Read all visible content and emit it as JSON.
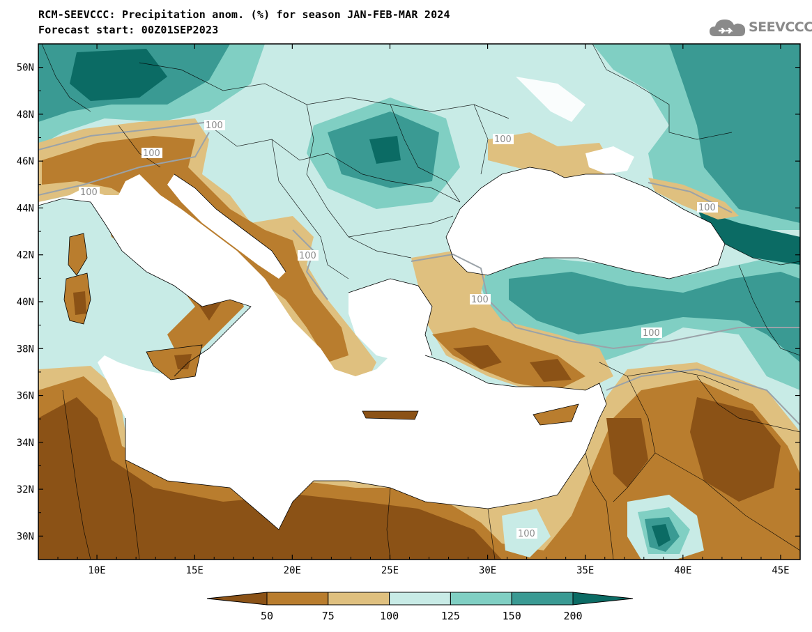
{
  "title": {
    "line1": "RCM-SEEVCCC: Precipitation anom. (%) for season JAN-FEB-MAR 2024",
    "line2": "Forecast start: 00Z01SEP2023"
  },
  "logo": {
    "text": "SEEVCCC",
    "icon": "cloud-icon",
    "color": "#8a8a8a"
  },
  "map": {
    "lon_range": [
      7,
      46
    ],
    "lat_range": [
      29,
      51
    ],
    "lat_ticks": [
      "50N",
      "48N",
      "46N",
      "44N",
      "42N",
      "40N",
      "38N",
      "36N",
      "34N",
      "32N",
      "30N"
    ],
    "lon_ticks": [
      "10E",
      "15E",
      "20E",
      "25E",
      "30E",
      "35E",
      "40E",
      "45E"
    ],
    "contour_label": "100"
  },
  "colorbar": {
    "colors": [
      "#8b5216",
      "#b97d2e",
      "#dfc07f",
      "#c8ebe6",
      "#80cfc3",
      "#3a9a93",
      "#0b6b64"
    ],
    "labels": [
      "50",
      "75",
      "100",
      "125",
      "150",
      "200"
    ]
  }
}
